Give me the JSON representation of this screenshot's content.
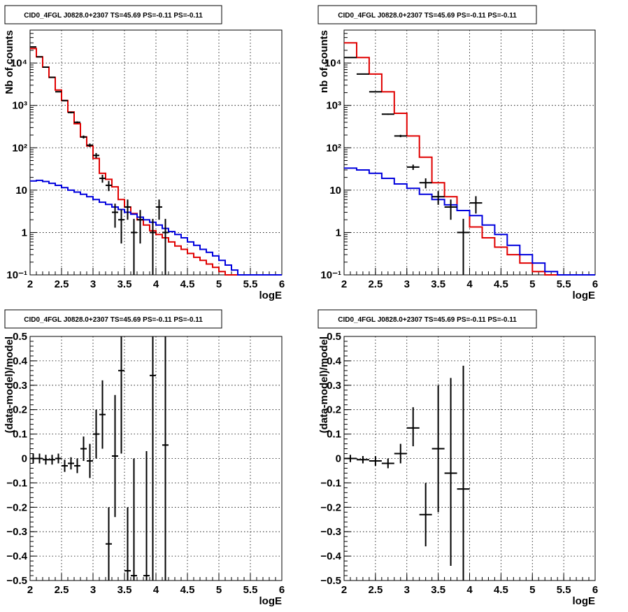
{
  "chart_data": [
    {
      "type": "line",
      "title": "CID0_4FGL J0828.0+2307 TS=45.69 PS=-0.11 PS=-0.11",
      "xlabel": "logE",
      "ylabel": "Nb of counts",
      "xlim": [
        2,
        6
      ],
      "ylim": [
        0.1,
        60000
      ],
      "yscale": "log",
      "grid": true,
      "xticks": [
        "2",
        "2.5",
        "3",
        "3.5",
        "4",
        "4.5",
        "5",
        "5.5",
        "6"
      ],
      "yticks": [
        {
          "value": 0.1,
          "label": "10⁻¹"
        },
        {
          "value": 1,
          "label": "1"
        },
        {
          "value": 10,
          "label": "10"
        },
        {
          "value": 100,
          "label": "10²"
        },
        {
          "value": 1000,
          "label": "10³"
        },
        {
          "value": 10000,
          "label": "10⁴"
        }
      ],
      "series": [
        {
          "kind": "step",
          "color": "#e00000",
          "edges": [
            2.0,
            2.1,
            2.2,
            2.3,
            2.4,
            2.5,
            2.6,
            2.7,
            2.8,
            2.9,
            3.0,
            3.1,
            3.2,
            3.3,
            3.4,
            3.5,
            3.6,
            3.7,
            3.8,
            3.9,
            4.0,
            4.1,
            4.2,
            4.3,
            4.4,
            4.5,
            4.6,
            4.7,
            4.8,
            4.9,
            5.0,
            5.1,
            5.2,
            5.3,
            5.4,
            5.5,
            5.6,
            5.7,
            5.8,
            5.9,
            6.0
          ],
          "values": [
            22000,
            14000,
            8000,
            4600,
            2300,
            1300,
            700,
            370,
            180,
            110,
            56,
            25,
            18,
            12,
            6,
            4,
            2.8,
            2.0,
            1.5,
            1.1,
            0.9,
            0.75,
            0.6,
            0.48,
            0.4,
            0.32,
            0.26,
            0.22,
            0.18,
            0.15,
            0.12,
            0.1,
            0.1,
            0.1,
            0.1,
            0.1,
            0.1,
            0.1,
            0.1,
            0.1
          ]
        },
        {
          "kind": "step",
          "color": "#0000dd",
          "edges": [
            2.0,
            2.1,
            2.2,
            2.3,
            2.4,
            2.5,
            2.6,
            2.7,
            2.8,
            2.9,
            3.0,
            3.1,
            3.2,
            3.3,
            3.4,
            3.5,
            3.6,
            3.7,
            3.8,
            3.9,
            4.0,
            4.1,
            4.2,
            4.3,
            4.4,
            4.5,
            4.6,
            4.7,
            4.8,
            4.9,
            5.0,
            5.1,
            5.2,
            5.3,
            5.4,
            5.5,
            5.6,
            5.7,
            5.8,
            5.9,
            6.0
          ],
          "values": [
            16.5,
            17,
            16,
            14.5,
            13,
            11.5,
            10,
            9,
            8,
            7,
            6,
            5.2,
            4.6,
            4,
            3.5,
            3,
            2.7,
            2.3,
            2,
            1.75,
            1.5,
            1.25,
            1.05,
            0.9,
            0.75,
            0.6,
            0.5,
            0.4,
            0.34,
            0.28,
            0.22,
            0.17,
            0.13,
            0.1,
            0.1,
            0.1,
            0.1,
            0.1,
            0.1,
            0.1
          ]
        },
        {
          "kind": "errorbar",
          "color": "#000000",
          "points": [
            {
              "x": 2.05,
              "y": 24000,
              "dx": 0.05,
              "lo": 23500,
              "hi": 24500
            },
            {
              "x": 2.15,
              "y": 14000,
              "dx": 0.05,
              "lo": 13800,
              "hi": 14300
            },
            {
              "x": 2.25,
              "y": 8000,
              "dx": 0.05,
              "lo": 7800,
              "hi": 8200
            },
            {
              "x": 2.35,
              "y": 4600,
              "dx": 0.05,
              "lo": 4500,
              "hi": 4700
            },
            {
              "x": 2.45,
              "y": 2100,
              "dx": 0.05,
              "lo": 2050,
              "hi": 2150
            },
            {
              "x": 2.55,
              "y": 1300,
              "dx": 0.05,
              "lo": 1260,
              "hi": 1340
            },
            {
              "x": 2.65,
              "y": 680,
              "dx": 0.05,
              "lo": 650,
              "hi": 710
            },
            {
              "x": 2.75,
              "y": 400,
              "dx": 0.05,
              "lo": 380,
              "hi": 420
            },
            {
              "x": 2.85,
              "y": 180,
              "dx": 0.05,
              "lo": 165,
              "hi": 195
            },
            {
              "x": 2.95,
              "y": 115,
              "dx": 0.05,
              "lo": 104,
              "hi": 126
            },
            {
              "x": 3.05,
              "y": 66,
              "dx": 0.05,
              "lo": 57,
              "hi": 75
            },
            {
              "x": 3.15,
              "y": 19,
              "dx": 0.05,
              "lo": 15,
              "hi": 23
            },
            {
              "x": 3.25,
              "y": 13,
              "dx": 0.05,
              "lo": 9.5,
              "hi": 16.5
            },
            {
              "x": 3.35,
              "y": 3,
              "dx": 0.05,
              "lo": 1.3,
              "hi": 4.8
            },
            {
              "x": 3.45,
              "y": 2,
              "dx": 0.05,
              "lo": 0.55,
              "hi": 3.5
            },
            {
              "x": 3.55,
              "y": 4,
              "dx": 0.05,
              "lo": 2,
              "hi": 6
            },
            {
              "x": 3.65,
              "y": 1,
              "dx": 0.05,
              "lo": 0.05,
              "hi": 2.1
            },
            {
              "x": 3.75,
              "y": 2,
              "dx": 0.05,
              "lo": 0.55,
              "hi": 3.4
            },
            {
              "x": 3.95,
              "y": 1,
              "dx": 0.05,
              "lo": 0.05,
              "hi": 2.1
            },
            {
              "x": 4.05,
              "y": 4,
              "dx": 0.05,
              "lo": 2,
              "hi": 6
            },
            {
              "x": 4.15,
              "y": 1,
              "dx": 0.05,
              "lo": 0.05,
              "hi": 2.1
            }
          ]
        }
      ]
    },
    {
      "type": "line",
      "title": "CID0_4FGL J0828.0+2307 TS=45.69 PS=-0.11 PS=-0.11",
      "xlabel": "logE",
      "ylabel": "nb of counts",
      "xlim": [
        2,
        6
      ],
      "ylim": [
        0.1,
        60000
      ],
      "yscale": "log",
      "grid": true,
      "xticks": [
        "2",
        "2.5",
        "3",
        "3.5",
        "4",
        "4.5",
        "5",
        "5.5",
        "6"
      ],
      "yticks": [
        {
          "value": 0.1,
          "label": "10⁻¹"
        },
        {
          "value": 1,
          "label": "1"
        },
        {
          "value": 10,
          "label": "10"
        },
        {
          "value": 100,
          "label": "10²"
        },
        {
          "value": 1000,
          "label": "10³"
        },
        {
          "value": 10000,
          "label": "10⁴"
        }
      ],
      "series": [
        {
          "kind": "step",
          "color": "#e00000",
          "edges": [
            2.0,
            2.2,
            2.4,
            2.6,
            2.8,
            3.0,
            3.2,
            3.4,
            3.6,
            3.8,
            4.0,
            4.2,
            4.4,
            4.6,
            4.8,
            5.0,
            5.2,
            5.4,
            5.6,
            5.8,
            6.0
          ],
          "values": [
            30000,
            13500,
            5500,
            2100,
            650,
            190,
            60,
            15,
            7,
            3.3,
            1.35,
            0.75,
            0.45,
            0.3,
            0.19,
            0.12,
            0.1,
            0.1,
            0.1,
            0.1
          ]
        },
        {
          "kind": "step",
          "color": "#0000dd",
          "edges": [
            2.0,
            2.2,
            2.4,
            2.6,
            2.8,
            3.0,
            3.2,
            3.4,
            3.6,
            3.8,
            4.0,
            4.2,
            4.4,
            4.6,
            4.8,
            5.0,
            5.2,
            5.4,
            5.6,
            5.8,
            6.0
          ],
          "values": [
            33,
            30,
            25,
            19,
            14,
            11,
            8,
            6,
            4.5,
            3.3,
            2.5,
            1.5,
            0.9,
            0.5,
            0.3,
            0.19,
            0.12,
            0.1,
            0.1,
            0.1
          ]
        },
        {
          "kind": "errorbar",
          "color": "#000000",
          "points": [
            {
              "x": 2.1,
              "y": 13500,
              "dx": 0.1,
              "lo": 13300,
              "hi": 13700
            },
            {
              "x": 2.3,
              "y": 5500,
              "dx": 0.1,
              "lo": 5400,
              "hi": 5600
            },
            {
              "x": 2.5,
              "y": 2100,
              "dx": 0.1,
              "lo": 2050,
              "hi": 2150
            },
            {
              "x": 2.7,
              "y": 620,
              "dx": 0.1,
              "lo": 600,
              "hi": 640
            },
            {
              "x": 2.9,
              "y": 190,
              "dx": 0.1,
              "lo": 178,
              "hi": 202
            },
            {
              "x": 3.1,
              "y": 35,
              "dx": 0.1,
              "lo": 30,
              "hi": 40
            },
            {
              "x": 3.3,
              "y": 15,
              "dx": 0.1,
              "lo": 11,
              "hi": 19
            },
            {
              "x": 3.5,
              "y": 7,
              "dx": 0.1,
              "lo": 4.5,
              "hi": 9.5
            },
            {
              "x": 3.7,
              "y": 4,
              "dx": 0.1,
              "lo": 2,
              "hi": 6
            },
            {
              "x": 3.9,
              "y": 1,
              "dx": 0.1,
              "lo": 0.05,
              "hi": 2.1
            },
            {
              "x": 4.1,
              "y": 5,
              "dx": 0.1,
              "lo": 2.8,
              "hi": 7.2
            }
          ]
        }
      ]
    },
    {
      "type": "scatter",
      "title": "CID0_4FGL J0828.0+2307 TS=45.69 PS=-0.11 PS=-0.11",
      "xlabel": "logE",
      "ylabel": "(data-model)/model",
      "xlim": [
        2,
        6
      ],
      "ylim": [
        -0.5,
        0.5
      ],
      "yscale": "linear",
      "grid": true,
      "xticks": [
        "2",
        "2.5",
        "3",
        "3.5",
        "4",
        "4.5",
        "5",
        "5.5",
        "6"
      ],
      "yticks": [
        {
          "value": -0.5,
          "label": "−0.5"
        },
        {
          "value": -0.4,
          "label": "−0.4"
        },
        {
          "value": -0.3,
          "label": "−0.3"
        },
        {
          "value": -0.2,
          "label": "−0.2"
        },
        {
          "value": -0.1,
          "label": "−0.1"
        },
        {
          "value": 0,
          "label": "0"
        },
        {
          "value": 0.1,
          "label": "0.1"
        },
        {
          "value": 0.2,
          "label": "0.2"
        },
        {
          "value": 0.3,
          "label": "0.3"
        },
        {
          "value": 0.4,
          "label": "0.4"
        },
        {
          "value": 0.5,
          "label": "0.5"
        }
      ],
      "series": [
        {
          "kind": "errorbar",
          "color": "#000000",
          "points": [
            {
              "x": 2.05,
              "y": 0.0,
              "dx": 0.05,
              "lo": -0.02,
              "hi": 0.02
            },
            {
              "x": 2.15,
              "y": 0.0,
              "dx": 0.05,
              "lo": -0.02,
              "hi": 0.02
            },
            {
              "x": 2.25,
              "y": -0.005,
              "dx": 0.05,
              "lo": -0.025,
              "hi": 0.015
            },
            {
              "x": 2.35,
              "y": -0.005,
              "dx": 0.05,
              "lo": -0.025,
              "hi": 0.015
            },
            {
              "x": 2.45,
              "y": 0.0,
              "dx": 0.05,
              "lo": -0.02,
              "hi": 0.02
            },
            {
              "x": 2.55,
              "y": -0.03,
              "dx": 0.05,
              "lo": -0.055,
              "hi": -0.005
            },
            {
              "x": 2.65,
              "y": -0.02,
              "dx": 0.05,
              "lo": -0.045,
              "hi": 0.005
            },
            {
              "x": 2.75,
              "y": -0.03,
              "dx": 0.05,
              "lo": -0.06,
              "hi": 0.0
            },
            {
              "x": 2.85,
              "y": 0.04,
              "dx": 0.05,
              "lo": -0.01,
              "hi": 0.09
            },
            {
              "x": 2.95,
              "y": -0.01,
              "dx": 0.05,
              "lo": -0.08,
              "hi": 0.06
            },
            {
              "x": 3.05,
              "y": 0.1,
              "dx": 0.05,
              "lo": 0.0,
              "hi": 0.2
            },
            {
              "x": 3.15,
              "y": 0.18,
              "dx": 0.05,
              "lo": 0.04,
              "hi": 0.32
            },
            {
              "x": 3.25,
              "y": -0.35,
              "dx": 0.05,
              "lo": -0.5,
              "hi": -0.2
            },
            {
              "x": 3.35,
              "y": 0.01,
              "dx": 0.05,
              "lo": -0.24,
              "hi": 0.26
            },
            {
              "x": 3.45,
              "y": 0.36,
              "dx": 0.05,
              "lo": 0.02,
              "hi": 0.5
            },
            {
              "x": 3.55,
              "y": -0.46,
              "dx": 0.05,
              "lo": -0.5,
              "hi": -0.2
            },
            {
              "x": 3.65,
              "y": -0.48,
              "dx": 0.05,
              "lo": -0.5,
              "hi": 0.0
            },
            {
              "x": 3.85,
              "y": -0.48,
              "dx": 0.05,
              "lo": -0.5,
              "hi": 0.03
            },
            {
              "x": 3.95,
              "y": 0.34,
              "dx": 0.05,
              "lo": -0.5,
              "hi": 0.5
            },
            {
              "x": 4.15,
              "y": 0.055,
              "dx": 0.05,
              "lo": -0.5,
              "hi": 0.5
            }
          ]
        }
      ]
    },
    {
      "type": "scatter",
      "title": "CID0_4FGL J0828.0+2307 TS=45.69 PS=-0.11 PS=-0.11",
      "xlabel": "logE",
      "ylabel": "(data-model)/model",
      "xlim": [
        2,
        6
      ],
      "ylim": [
        -0.5,
        0.5
      ],
      "yscale": "linear",
      "grid": true,
      "xticks": [
        "2",
        "2.5",
        "3",
        "3.5",
        "4",
        "4.5",
        "5",
        "5.5",
        "6"
      ],
      "yticks": [
        {
          "value": -0.5,
          "label": "−0.5"
        },
        {
          "value": -0.4,
          "label": "−0.4"
        },
        {
          "value": -0.3,
          "label": "−0.3"
        },
        {
          "value": -0.2,
          "label": "−0.2"
        },
        {
          "value": -0.1,
          "label": "−0.1"
        },
        {
          "value": 0,
          "label": "0"
        },
        {
          "value": 0.1,
          "label": "0.1"
        },
        {
          "value": 0.2,
          "label": "0.2"
        },
        {
          "value": 0.3,
          "label": "0.3"
        },
        {
          "value": 0.4,
          "label": "0.4"
        },
        {
          "value": 0.5,
          "label": "0.5"
        }
      ],
      "series": [
        {
          "kind": "errorbar",
          "color": "#000000",
          "points": [
            {
              "x": 2.1,
              "y": 0.0,
              "dx": 0.1,
              "lo": -0.015,
              "hi": 0.015
            },
            {
              "x": 2.3,
              "y": -0.005,
              "dx": 0.1,
              "lo": -0.02,
              "hi": 0.01
            },
            {
              "x": 2.5,
              "y": -0.01,
              "dx": 0.1,
              "lo": -0.03,
              "hi": 0.01
            },
            {
              "x": 2.7,
              "y": -0.02,
              "dx": 0.1,
              "lo": -0.04,
              "hi": 0.0
            },
            {
              "x": 2.9,
              "y": 0.02,
              "dx": 0.1,
              "lo": -0.02,
              "hi": 0.06
            },
            {
              "x": 3.1,
              "y": 0.125,
              "dx": 0.1,
              "lo": 0.05,
              "hi": 0.21
            },
            {
              "x": 3.3,
              "y": -0.23,
              "dx": 0.1,
              "lo": -0.36,
              "hi": -0.1
            },
            {
              "x": 3.5,
              "y": 0.04,
              "dx": 0.1,
              "lo": -0.22,
              "hi": 0.3
            },
            {
              "x": 3.7,
              "y": -0.06,
              "dx": 0.1,
              "lo": -0.44,
              "hi": 0.33
            },
            {
              "x": 3.9,
              "y": -0.125,
              "dx": 0.1,
              "lo": -0.5,
              "hi": 0.38
            }
          ]
        }
      ]
    }
  ]
}
